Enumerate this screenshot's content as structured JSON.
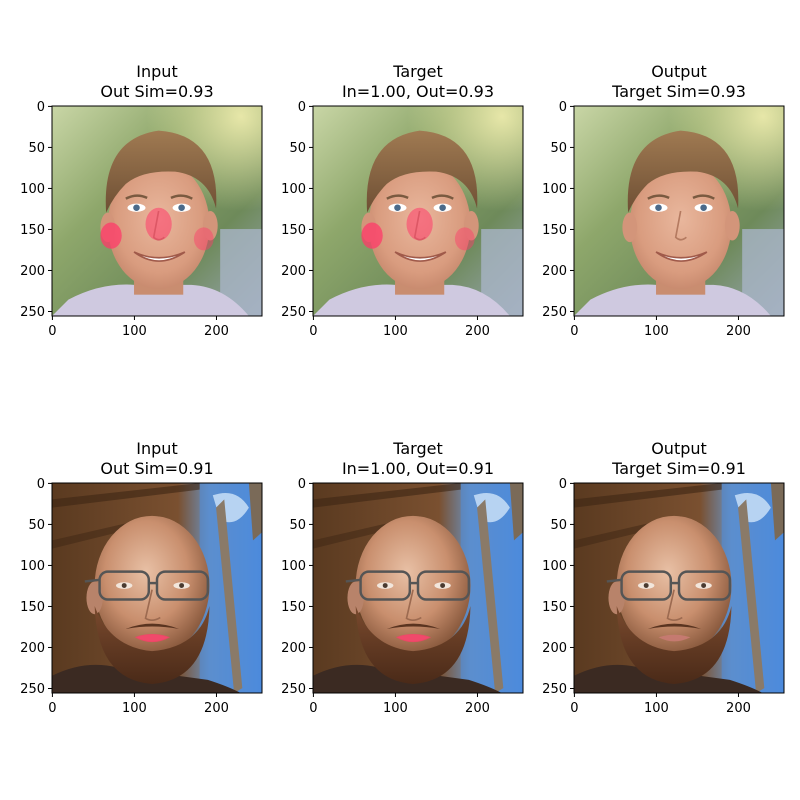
{
  "chart_data": [
    {
      "type": "image",
      "title": [
        "Input",
        "Out Sim=0.93"
      ],
      "xticks": [
        0,
        100,
        200
      ],
      "yticks": [
        0,
        50,
        100,
        150,
        200,
        250
      ],
      "extent": [
        256,
        256
      ],
      "subject": "face-1",
      "mark": "red-marks"
    },
    {
      "type": "image",
      "title": [
        "Target",
        "In=1.00, Out=0.93"
      ],
      "xticks": [
        0,
        100,
        200
      ],
      "yticks": [
        0,
        50,
        100,
        150,
        200,
        250
      ],
      "extent": [
        256,
        256
      ],
      "subject": "face-1",
      "mark": "red-marks"
    },
    {
      "type": "image",
      "title": [
        "Output",
        "Target Sim=0.93"
      ],
      "xticks": [
        0,
        100,
        200
      ],
      "yticks": [
        0,
        50,
        100,
        150,
        200,
        250
      ],
      "extent": [
        256,
        256
      ],
      "subject": "face-1",
      "mark": "none"
    },
    {
      "type": "image",
      "title": [
        "Input",
        "Out Sim=0.91"
      ],
      "xticks": [
        0,
        100,
        200
      ],
      "yticks": [
        0,
        50,
        100,
        150,
        200,
        250
      ],
      "extent": [
        256,
        256
      ],
      "subject": "face-2",
      "mark": "red-lips"
    },
    {
      "type": "image",
      "title": [
        "Target",
        "In=1.00, Out=0.91"
      ],
      "xticks": [
        0,
        100,
        200
      ],
      "yticks": [
        0,
        50,
        100,
        150,
        200,
        250
      ],
      "extent": [
        256,
        256
      ],
      "subject": "face-2",
      "mark": "red-lips"
    },
    {
      "type": "image",
      "title": [
        "Output",
        "Target Sim=0.91"
      ],
      "xticks": [
        0,
        100,
        200
      ],
      "yticks": [
        0,
        50,
        100,
        150,
        200,
        250
      ],
      "extent": [
        256,
        256
      ],
      "subject": "face-2",
      "mark": "none"
    }
  ]
}
